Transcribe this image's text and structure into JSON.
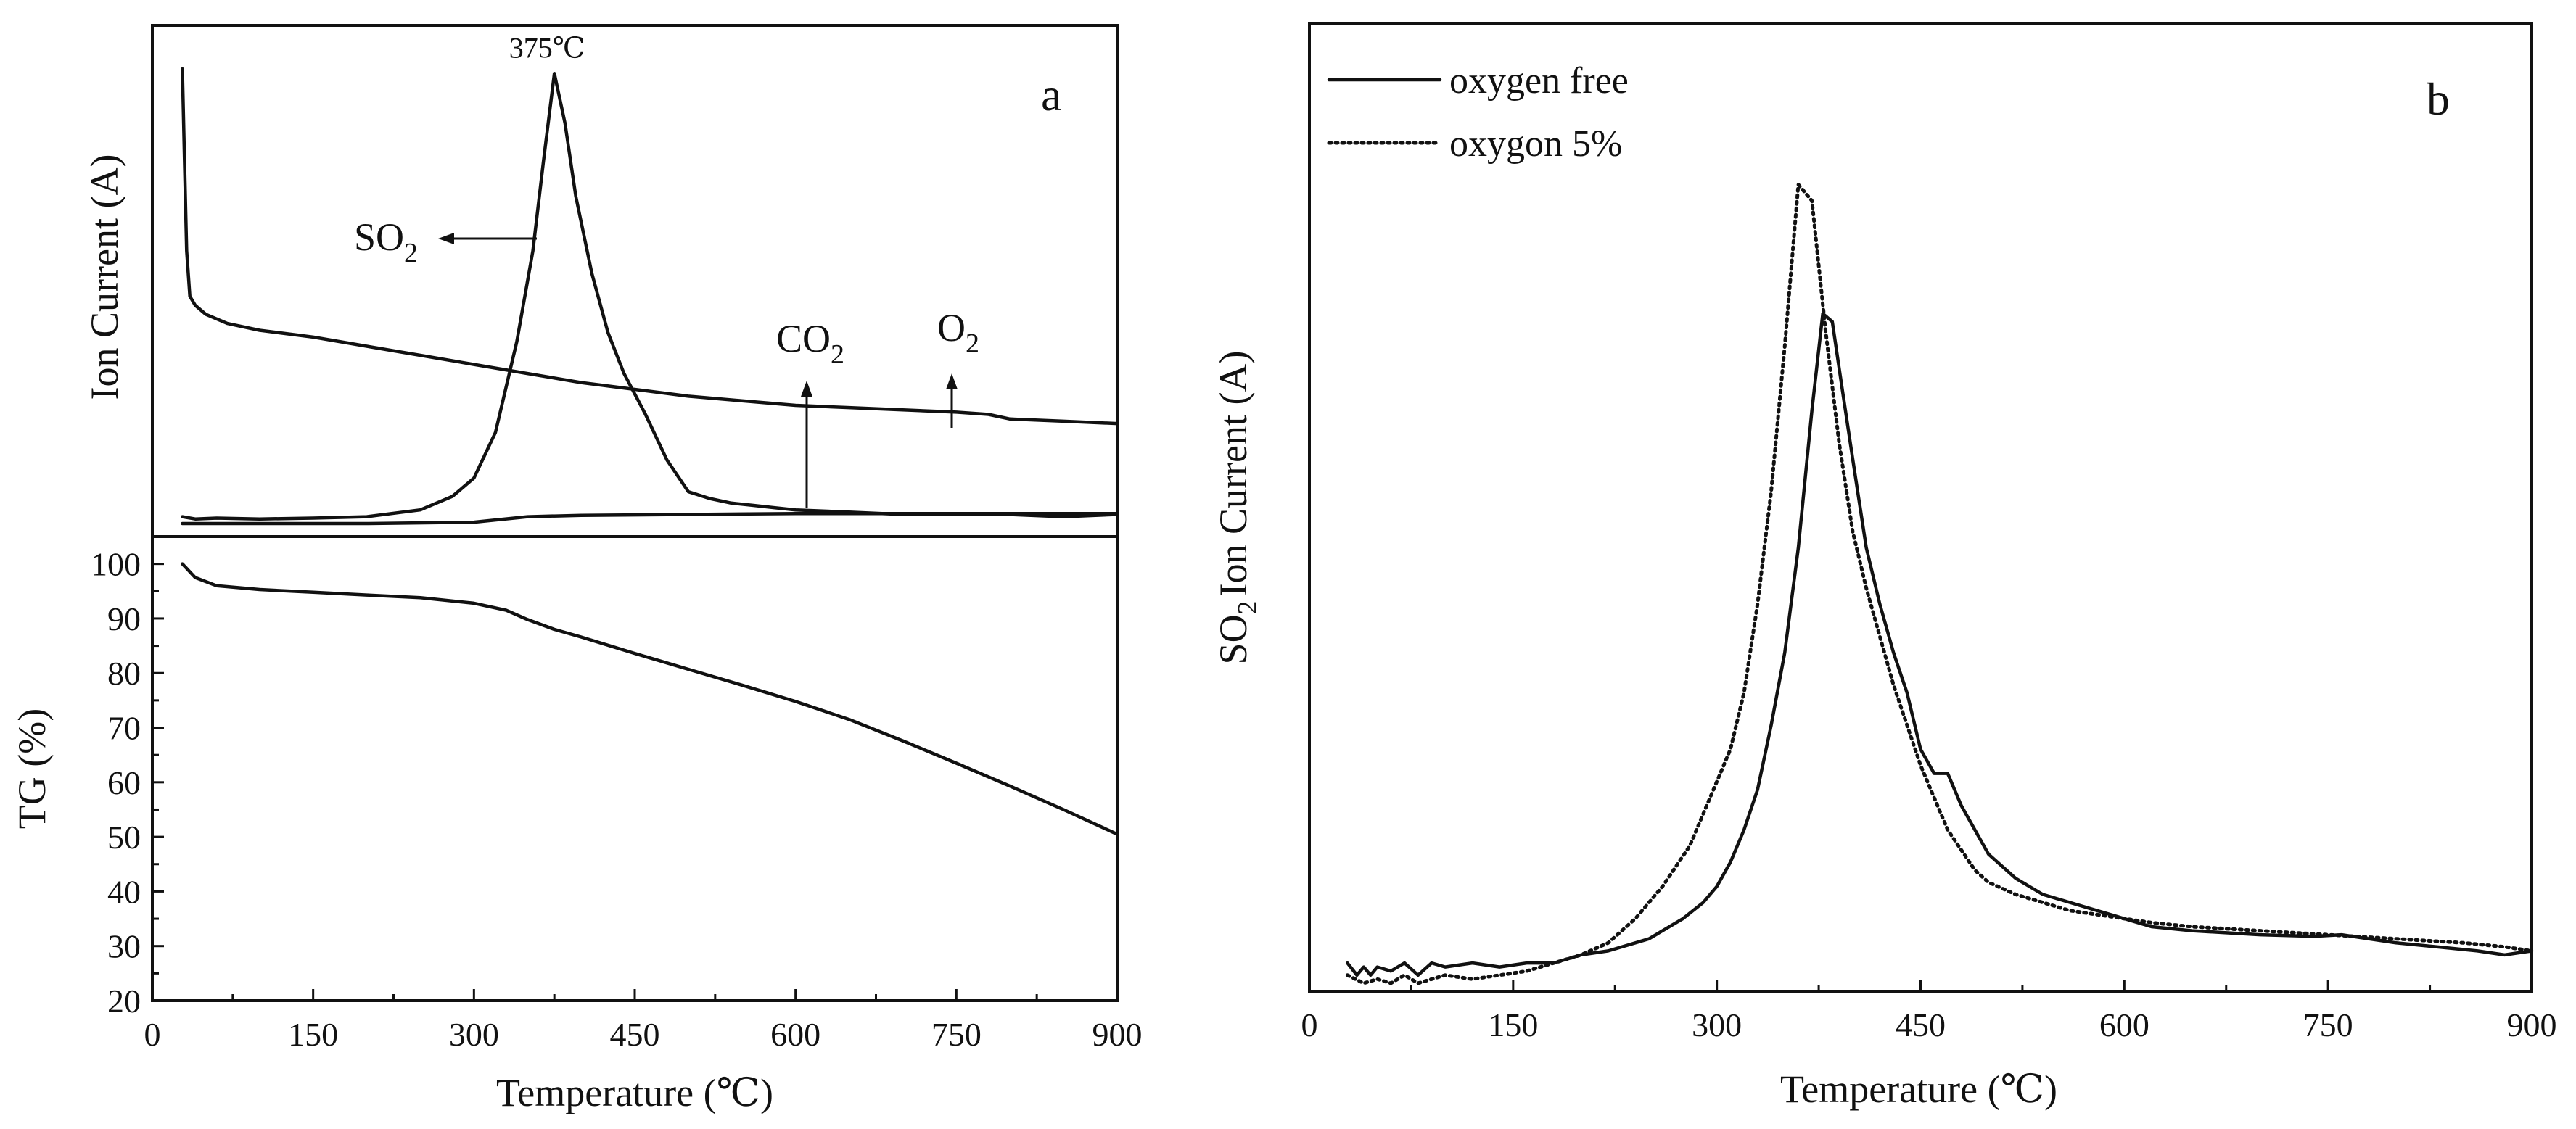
{
  "chart_data": [
    {
      "panel": "a",
      "type": "line",
      "subplots": [
        {
          "name": "ion-current",
          "ylabel": "Ion Current (A)",
          "xlim": [
            0,
            900
          ],
          "ylim": [
            0,
            1
          ],
          "y_ticks_shown": false,
          "peak_label": "375℃",
          "annotations": [
            {
              "text": "SO",
              "subscript": "2",
              "arrow": "left"
            },
            {
              "text": "CO",
              "subscript": "2",
              "arrow": "up"
            },
            {
              "text": "O",
              "subscript": "2",
              "arrow": "up"
            }
          ],
          "series": [
            {
              "name": "SO2",
              "x": [
                28,
                40,
                60,
                100,
                150,
                200,
                250,
                280,
                300,
                320,
                340,
                355,
                365,
                375,
                385,
                395,
                410,
                425,
                440,
                460,
                480,
                500,
                520,
                540,
                560,
                580,
                600,
                650,
                700,
                750,
                800,
                850,
                900
              ],
              "y": [
                0.015,
                0.01,
                0.012,
                0.01,
                0.012,
                0.015,
                0.03,
                0.06,
                0.1,
                0.2,
                0.4,
                0.6,
                0.8,
                0.99,
                0.88,
                0.72,
                0.55,
                0.42,
                0.33,
                0.24,
                0.14,
                0.07,
                0.055,
                0.045,
                0.04,
                0.035,
                0.03,
                0.025,
                0.02,
                0.02,
                0.02,
                0.015,
                0.02
              ]
            },
            {
              "name": "CO2",
              "x": [
                28,
                30,
                32,
                35,
                40,
                50,
                70,
                100,
                150,
                200,
                250,
                300,
                350,
                400,
                450,
                500,
                550,
                600,
                650,
                700,
                750,
                780,
                800,
                850,
                900
              ],
              "y": [
                1.0,
                0.8,
                0.6,
                0.5,
                0.48,
                0.46,
                0.44,
                0.425,
                0.41,
                0.39,
                0.37,
                0.35,
                0.33,
                0.31,
                0.295,
                0.28,
                0.27,
                0.26,
                0.255,
                0.25,
                0.245,
                0.24,
                0.23,
                0.225,
                0.22
              ]
            },
            {
              "name": "O2",
              "x": [
                28,
                100,
                200,
                300,
                350,
                400,
                500,
                600,
                700,
                800,
                900
              ],
              "y": [
                0.0,
                0.0,
                0.0,
                0.003,
                0.015,
                0.018,
                0.02,
                0.022,
                0.022,
                0.022,
                0.022
              ]
            }
          ]
        },
        {
          "name": "tg",
          "ylabel": "TG (%)",
          "xlabel": "Temperature (℃)",
          "xlim": [
            0,
            900
          ],
          "ylim": [
            20,
            105
          ],
          "xticks": [
            0,
            150,
            300,
            450,
            600,
            750,
            900
          ],
          "yticks": [
            20,
            30,
            40,
            50,
            60,
            70,
            80,
            90,
            100
          ],
          "series": [
            {
              "name": "TG",
              "x": [
                28,
                40,
                60,
                100,
                150,
                200,
                250,
                300,
                330,
                350,
                375,
                400,
                450,
                500,
                550,
                600,
                650,
                700,
                750,
                800,
                850,
                900
              ],
              "y": [
                100,
                97.5,
                96,
                95.3,
                94.8,
                94.3,
                93.8,
                92.8,
                91.5,
                89.8,
                88,
                86.6,
                83.6,
                80.7,
                77.8,
                74.8,
                71.5,
                67.6,
                63.5,
                59.3,
                55,
                50.5
              ]
            }
          ]
        }
      ]
    },
    {
      "panel": "b",
      "type": "line",
      "xlabel": "Temperature (℃)",
      "ylabel_main": "SO",
      "ylabel_sub": "2",
      "ylabel_rest": "Ion Current (A)",
      "xlim": [
        0,
        900
      ],
      "ylim": [
        0,
        1.2
      ],
      "xticks": [
        0,
        150,
        300,
        450,
        600,
        750,
        900
      ],
      "y_ticks_shown": false,
      "legend_position": "top-left",
      "series": [
        {
          "name": "oxygen free",
          "style": "solid",
          "x": [
            28,
            35,
            40,
            45,
            50,
            60,
            70,
            80,
            90,
            100,
            120,
            140,
            160,
            180,
            200,
            220,
            240,
            250,
            260,
            275,
            290,
            300,
            310,
            320,
            330,
            340,
            350,
            360,
            370,
            378,
            385,
            392,
            400,
            410,
            420,
            430,
            440,
            450,
            460,
            470,
            480,
            490,
            500,
            520,
            540,
            560,
            580,
            600,
            620,
            650,
            700,
            740,
            760,
            800,
            830,
            860,
            880,
            900
          ],
          "y": [
            0.035,
            0.02,
            0.03,
            0.02,
            0.03,
            0.025,
            0.035,
            0.02,
            0.035,
            0.03,
            0.035,
            0.03,
            0.035,
            0.035,
            0.045,
            0.05,
            0.06,
            0.065,
            0.075,
            0.09,
            0.11,
            0.13,
            0.16,
            0.2,
            0.25,
            0.33,
            0.42,
            0.55,
            0.72,
            0.84,
            0.83,
            0.75,
            0.66,
            0.55,
            0.48,
            0.42,
            0.37,
            0.3,
            0.27,
            0.27,
            0.23,
            0.2,
            0.17,
            0.14,
            0.12,
            0.11,
            0.1,
            0.09,
            0.08,
            0.075,
            0.07,
            0.068,
            0.07,
            0.06,
            0.055,
            0.05,
            0.045,
            0.05
          ]
        },
        {
          "name": "oxygon 5%",
          "style": "dotted",
          "x": [
            28,
            40,
            50,
            60,
            70,
            80,
            100,
            120,
            140,
            160,
            180,
            200,
            220,
            240,
            260,
            280,
            290,
            300,
            310,
            320,
            330,
            340,
            350,
            360,
            370,
            380,
            390,
            400,
            410,
            420,
            430,
            440,
            450,
            460,
            470,
            480,
            490,
            500,
            520,
            540,
            560,
            580,
            600,
            620,
            650,
            700,
            750,
            800,
            850,
            880,
            900
          ],
          "y": [
            0.02,
            0.01,
            0.015,
            0.01,
            0.02,
            0.01,
            0.02,
            0.015,
            0.02,
            0.025,
            0.035,
            0.045,
            0.06,
            0.09,
            0.13,
            0.18,
            0.22,
            0.26,
            0.3,
            0.37,
            0.48,
            0.62,
            0.8,
            1.0,
            0.98,
            0.82,
            0.68,
            0.57,
            0.5,
            0.44,
            0.38,
            0.33,
            0.28,
            0.24,
            0.2,
            0.175,
            0.15,
            0.135,
            0.12,
            0.11,
            0.1,
            0.095,
            0.09,
            0.085,
            0.08,
            0.075,
            0.07,
            0.065,
            0.06,
            0.055,
            0.05
          ]
        }
      ]
    }
  ]
}
